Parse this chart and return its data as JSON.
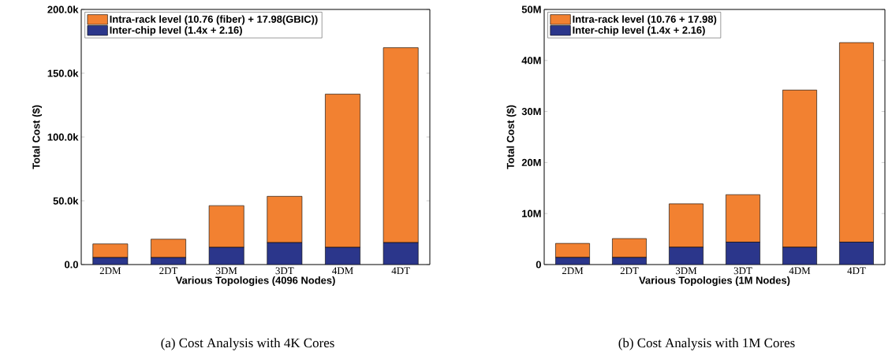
{
  "chart_data": [
    {
      "type": "bar",
      "stacked": true,
      "categories": [
        "2DM",
        "2DT",
        "3DM",
        "3DT",
        "4DM",
        "4DT"
      ],
      "series": [
        {
          "name": "Inter-chip level (1.4x + 2.16)",
          "color": "#2b368b",
          "values": [
            5500,
            5500,
            13500,
            17200,
            13500,
            17200
          ]
        },
        {
          "name": "Intra-rack level (10.76 (fiber) + 17.98(GBIC))",
          "color": "#f28131",
          "values": [
            10700,
            14400,
            32700,
            36300,
            120100,
            152800
          ]
        }
      ],
      "xlabel": "Various Topologies (4096 Nodes)",
      "ylabel": "Total Cost ($)",
      "ylim": [
        0,
        200000
      ],
      "yticks": [
        {
          "value": 0,
          "label": "0.0"
        },
        {
          "value": 50000,
          "label": "50.0k"
        },
        {
          "value": 100000,
          "label": "100.0k"
        },
        {
          "value": 150000,
          "label": "150.0k"
        },
        {
          "value": 200000,
          "label": "200.0k"
        }
      ],
      "legend": "top left",
      "annotations": [
        "(a) Cost Analysis with 4K Cores"
      ]
    },
    {
      "type": "bar",
      "stacked": true,
      "categories": [
        "2DM",
        "2DT",
        "3DM",
        "3DT",
        "4DM",
        "4DT"
      ],
      "series": [
        {
          "name": "Inter-chip level (1.4x + 2.16)",
          "color": "#2b368b",
          "values": [
            1400000,
            1400000,
            3400000,
            4400000,
            3400000,
            4400000
          ]
        },
        {
          "name": "Intra-rack level (10.76 + 17.98)",
          "color": "#f28131",
          "values": [
            2750000,
            3700000,
            8500000,
            9300000,
            30800000,
            39100000
          ]
        }
      ],
      "xlabel": "Various Topologies (1M Nodes)",
      "ylabel": "Total Cost ($)",
      "ylim": [
        0,
        50000000
      ],
      "yticks": [
        {
          "value": 0,
          "label": "0"
        },
        {
          "value": 10000000,
          "label": "10M"
        },
        {
          "value": 20000000,
          "label": "20M"
        },
        {
          "value": 30000000,
          "label": "30M"
        },
        {
          "value": 40000000,
          "label": "40M"
        },
        {
          "value": 50000000,
          "label": "50M"
        }
      ],
      "legend": "top left",
      "annotations": [
        "(b) Cost Analysis with 1M Cores"
      ]
    }
  ]
}
